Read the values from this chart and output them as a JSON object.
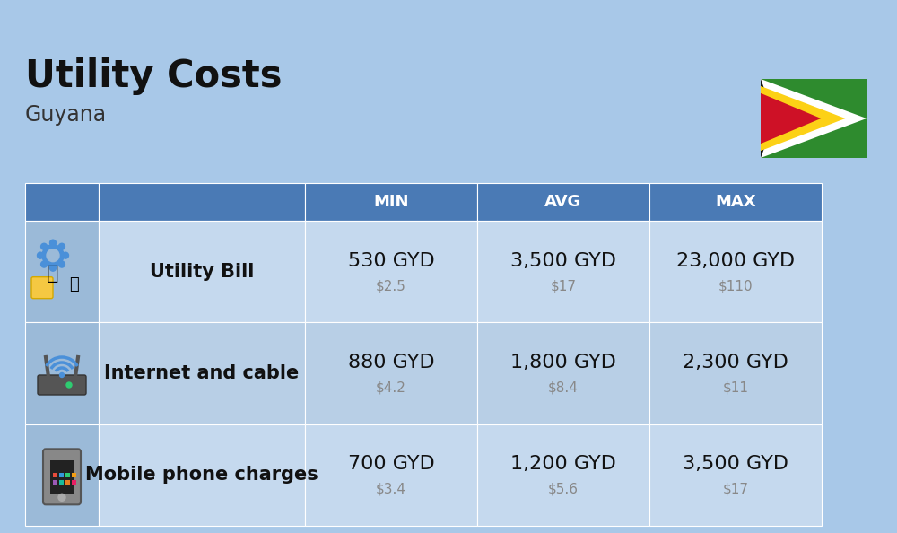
{
  "title": "Utility Costs",
  "subtitle": "Guyana",
  "background_color": "#a8c8e8",
  "header_bg_color": "#4a7ab5",
  "header_text_color": "#ffffff",
  "row_bg_color_1": "#c5d9ee",
  "row_bg_color_2": "#b8cfe6",
  "icon_col_bg": "#9bbad8",
  "columns": [
    "MIN",
    "AVG",
    "MAX"
  ],
  "rows": [
    {
      "name": "Utility Bill",
      "min_gyd": "530 GYD",
      "min_usd": "$2.5",
      "avg_gyd": "3,500 GYD",
      "avg_usd": "$17",
      "max_gyd": "23,000 GYD",
      "max_usd": "$110"
    },
    {
      "name": "Internet and cable",
      "min_gyd": "880 GYD",
      "min_usd": "$4.2",
      "avg_gyd": "1,800 GYD",
      "avg_usd": "$8.4",
      "max_gyd": "2,300 GYD",
      "max_usd": "$11"
    },
    {
      "name": "Mobile phone charges",
      "min_gyd": "700 GYD",
      "min_usd": "$3.4",
      "avg_gyd": "1,200 GYD",
      "avg_usd": "$5.6",
      "max_gyd": "3,500 GYD",
      "max_usd": "$17"
    }
  ],
  "title_fontsize": 30,
  "subtitle_fontsize": 17,
  "header_fontsize": 13,
  "cell_fontsize_gyd": 16,
  "cell_fontsize_usd": 11,
  "row_name_fontsize": 15,
  "flag_green": "#2e8b2e",
  "flag_white": "#ffffff",
  "flag_black": "#111111",
  "flag_yellow": "#fcd116",
  "flag_red": "#ce1126"
}
